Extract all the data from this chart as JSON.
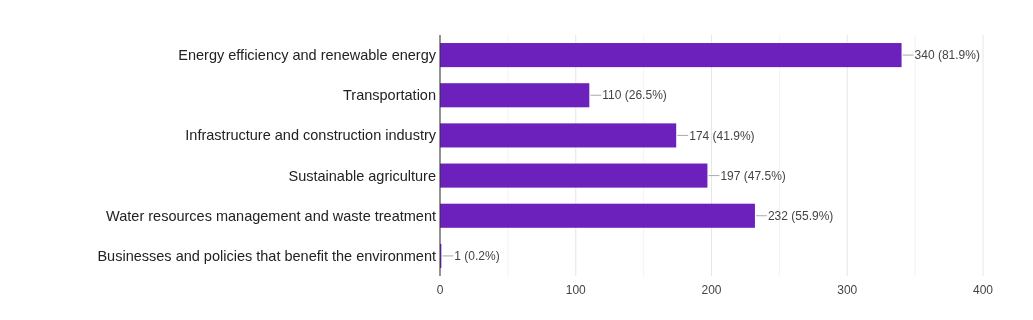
{
  "chart_data": {
    "type": "bar",
    "orientation": "horizontal",
    "categories": [
      "Energy efficiency and renewable energy",
      "Transportation",
      "Infrastructure and construction industry",
      "Sustainable agriculture",
      "Water resources management and waste treatment",
      "Businesses and policies that benefit the environment"
    ],
    "values": [
      340,
      110,
      174,
      197,
      232,
      1
    ],
    "value_labels": [
      "340 (81.9%)",
      "110 (26.5%)",
      "174 (41.9%)",
      "197 (47.5%)",
      "232 (55.9%)",
      "1 (0.2%)"
    ],
    "color": "#6c20bc",
    "xlim": [
      0,
      400
    ],
    "xticks": [
      0,
      {
        "value": 50,
        "label": null
      },
      100,
      {
        "value": 150,
        "label": null
      },
      200,
      {
        "value": 250,
        "label": null
      },
      300,
      {
        "value": 350,
        "label": null
      },
      400
    ],
    "grid": "x"
  }
}
